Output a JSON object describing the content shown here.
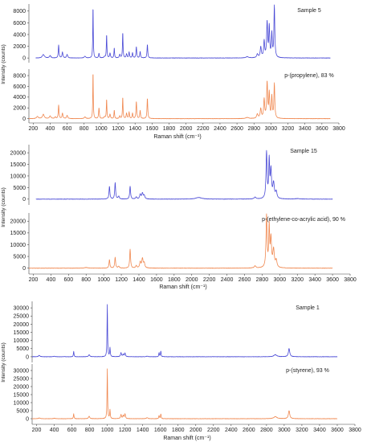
{
  "chart_data": [
    {
      "type": "line",
      "xlabel": "Raman shift (cm⁻¹)",
      "ylabel": "Intensity (counts)",
      "xlim": [
        150,
        3800
      ],
      "x_ticks": [
        200,
        400,
        600,
        800,
        1000,
        1200,
        1400,
        1600,
        1800,
        2000,
        2200,
        2400,
        2600,
        2800,
        3000,
        3200,
        3400,
        3600,
        3800
      ],
      "panels": [
        {
          "name": "Sample 5",
          "color": "#4a4ad6",
          "ylim": [
            -800,
            9200
          ],
          "y_ticks": [
            0,
            2000,
            4000,
            6000,
            8000
          ],
          "x_range": [
            230,
            3700
          ],
          "baseline": 0,
          "peaks": [
            [
              320,
              600,
              14
            ],
            [
              400,
              400,
              10
            ],
            [
              500,
              2200,
              5
            ],
            [
              545,
              1000,
              6
            ],
            [
              600,
              600,
              8
            ],
            [
              810,
              300,
              10
            ],
            [
              905,
              8900,
              3.5
            ],
            [
              975,
              800,
              5
            ],
            [
              1040,
              200,
              8
            ],
            [
              1065,
              4000,
              4
            ],
            [
              1105,
              800,
              6
            ],
            [
              1155,
              1700,
              4
            ],
            [
              1220,
              600,
              6
            ],
            [
              1255,
              4400,
              4
            ],
            [
              1300,
              700,
              6
            ],
            [
              1330,
              1000,
              5
            ],
            [
              1370,
              900,
              5
            ],
            [
              1415,
              1900,
              5
            ],
            [
              1460,
              1100,
              5
            ],
            [
              1545,
              2300,
              5
            ],
            [
              2720,
              200,
              20
            ],
            [
              2840,
              600,
              10
            ],
            [
              2880,
              1800,
              8
            ],
            [
              2920,
              2800,
              7
            ],
            [
              2955,
              6000,
              7
            ],
            [
              2980,
              5200,
              6
            ],
            [
              3010,
              4000,
              6
            ],
            [
              3040,
              8800,
              6
            ]
          ]
        },
        {
          "name": "p-(propylene), 83 %",
          "color": "#f08850",
          "ylim": [
            -800,
            9200
          ],
          "y_ticks": [
            0,
            2000,
            4000,
            6000,
            8000
          ],
          "x_range": [
            150,
            3700
          ],
          "baseline": 0,
          "peaks": [
            [
              250,
              400,
              12
            ],
            [
              320,
              800,
              12
            ],
            [
              400,
              500,
              10
            ],
            [
              460,
              300,
              8
            ],
            [
              500,
              2500,
              5
            ],
            [
              545,
              1000,
              6
            ],
            [
              600,
              600,
              8
            ],
            [
              810,
              300,
              10
            ],
            [
              905,
              8800,
              3.5
            ],
            [
              975,
              2000,
              5
            ],
            [
              1040,
              300,
              8
            ],
            [
              1065,
              3600,
              4
            ],
            [
              1105,
              800,
              6
            ],
            [
              1155,
              1600,
              4
            ],
            [
              1220,
              500,
              6
            ],
            [
              1255,
              4000,
              4
            ],
            [
              1300,
              1000,
              6
            ],
            [
              1330,
              1200,
              5
            ],
            [
              1370,
              1000,
              5
            ],
            [
              1415,
              3200,
              5
            ],
            [
              1460,
              1500,
              5
            ],
            [
              1545,
              3800,
              5
            ],
            [
              2720,
              200,
              20
            ],
            [
              2840,
              800,
              10
            ],
            [
              2880,
              1800,
              8
            ],
            [
              2920,
              3500,
              7
            ],
            [
              2955,
              6600,
              7
            ],
            [
              2980,
              4600,
              6
            ],
            [
              3010,
              4000,
              6
            ],
            [
              3040,
              6400,
              6
            ]
          ]
        },
        {
          "name": "Sample 15",
          "color": "#4a4ad6",
          "ylim": [
            -2500,
            23500
          ],
          "y_ticks": [
            0,
            5000,
            10000,
            15000,
            20000
          ],
          "x_range": [
            230,
            3600
          ],
          "baseline": 0,
          "peaks": [
            [
              1065,
              5500,
              6
            ],
            [
              1130,
              7000,
              6
            ],
            [
              1170,
              1200,
              8
            ],
            [
              1300,
              5500,
              6
            ],
            [
              1370,
              900,
              8
            ],
            [
              1415,
              2000,
              8
            ],
            [
              1440,
              2500,
              9
            ],
            [
              1460,
              1500,
              8
            ],
            [
              2080,
              700,
              40
            ],
            [
              2720,
              800,
              12
            ],
            [
              2850,
              20000,
              7
            ],
            [
              2880,
              16000,
              6
            ],
            [
              2900,
              12000,
              8
            ],
            [
              2930,
              6500,
              10
            ],
            [
              2960,
              3000,
              10
            ],
            [
              3200,
              200,
              30
            ]
          ]
        },
        {
          "name": "p-(ethylene-co-acrylic acid), 90 %",
          "color": "#f08850",
          "ylim": [
            -2500,
            23500
          ],
          "y_ticks": [
            0,
            5000,
            10000,
            15000,
            20000
          ],
          "x_range": [
            150,
            3600
          ],
          "baseline": 0,
          "peaks": [
            [
              800,
              300,
              20
            ],
            [
              1065,
              3600,
              6
            ],
            [
              1130,
              4600,
              6
            ],
            [
              1170,
              800,
              8
            ],
            [
              1300,
              8000,
              6
            ],
            [
              1370,
              1000,
              8
            ],
            [
              1415,
              2500,
              8
            ],
            [
              1440,
              4000,
              9
            ],
            [
              1460,
              2000,
              8
            ],
            [
              2720,
              900,
              12
            ],
            [
              2850,
              22000,
              7
            ],
            [
              2880,
              17000,
              6
            ],
            [
              2900,
              12000,
              8
            ],
            [
              2930,
              7500,
              10
            ],
            [
              2960,
              3000,
              10
            ]
          ]
        },
        {
          "name": "Sample 1",
          "color": "#4a4ad6",
          "ylim": [
            -3500,
            34000
          ],
          "y_ticks": [
            0,
            5000,
            10000,
            15000,
            20000,
            25000,
            30000
          ],
          "x_range": [
            150,
            3600
          ],
          "baseline": 0,
          "peaks": [
            [
              230,
              800,
              10
            ],
            [
              400,
              300,
              10
            ],
            [
              620,
              3300,
              4
            ],
            [
              795,
              1200,
              8
            ],
            [
              1000,
              32000,
              3.5
            ],
            [
              1030,
              5500,
              4
            ],
            [
              1155,
              2500,
              6
            ],
            [
              1180,
              1500,
              6
            ],
            [
              1200,
              2200,
              6
            ],
            [
              1450,
              400,
              10
            ],
            [
              1585,
              2500,
              4
            ],
            [
              1605,
              3500,
              4
            ],
            [
              2900,
              1200,
              20
            ],
            [
              3055,
              5000,
              9
            ]
          ]
        },
        {
          "name": "p-(styrene), 93 %",
          "color": "#f08850",
          "ylim": [
            -3500,
            34000
          ],
          "y_ticks": [
            0,
            5000,
            10000,
            15000,
            20000,
            25000,
            30000
          ],
          "x_range": [
            150,
            3600
          ],
          "baseline": 0,
          "peaks": [
            [
              230,
              500,
              10
            ],
            [
              400,
              300,
              10
            ],
            [
              620,
              3000,
              4
            ],
            [
              795,
              1500,
              8
            ],
            [
              1000,
              31000,
              3.5
            ],
            [
              1030,
              5500,
              4
            ],
            [
              1155,
              2500,
              6
            ],
            [
              1180,
              2000,
              6
            ],
            [
              1200,
              3000,
              6
            ],
            [
              1450,
              600,
              10
            ],
            [
              1585,
              2000,
              4
            ],
            [
              1605,
              3000,
              4
            ],
            [
              2900,
              1300,
              20
            ],
            [
              3055,
              5000,
              9
            ]
          ]
        }
      ]
    }
  ]
}
